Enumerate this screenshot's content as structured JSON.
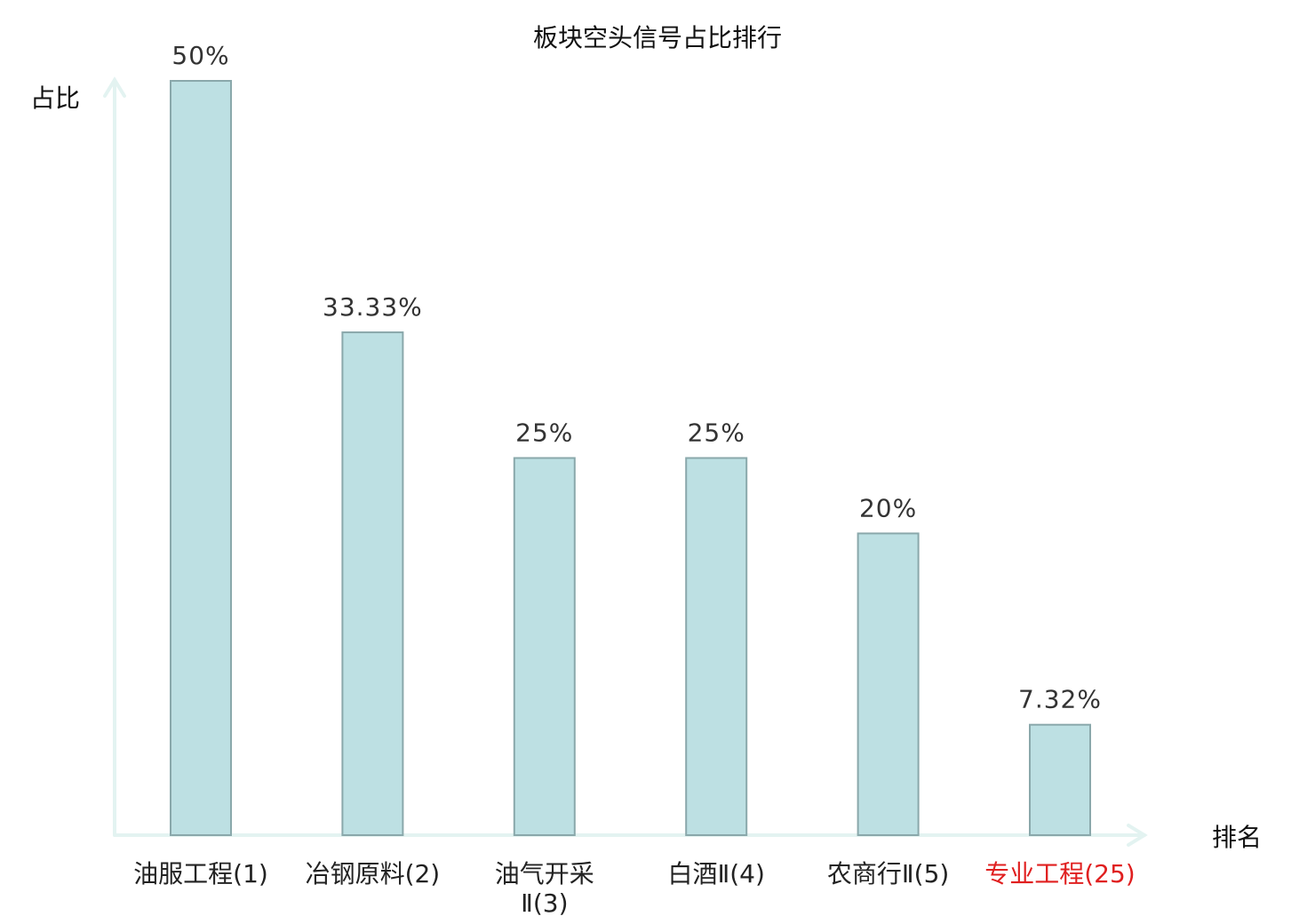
{
  "chart_data": {
    "type": "bar",
    "title": "板块空头信号占比排行",
    "ylabel": "占比",
    "xlabel": "排名",
    "ylim": [
      0,
      50
    ],
    "grid": false,
    "categories": [
      [
        "油服工程(1)"
      ],
      [
        "冶钢原料(2)"
      ],
      [
        "油气开采",
        "Ⅱ(3)"
      ],
      [
        "白酒Ⅱ(4)"
      ],
      [
        "农商行Ⅱ(5)"
      ],
      [
        "专业工程(25)"
      ]
    ],
    "values": [
      50,
      33.33,
      25,
      25,
      20,
      7.32
    ],
    "value_labels": [
      "50%",
      "33.33%",
      "25%",
      "25%",
      "20%",
      "7.32%"
    ],
    "highlight_index": 5,
    "colors": {
      "bar_fill": "#bde0e3",
      "bar_stroke": "#8aa8ab",
      "axis": "#e3f3f1",
      "highlight_label": "#e01f1f"
    }
  }
}
